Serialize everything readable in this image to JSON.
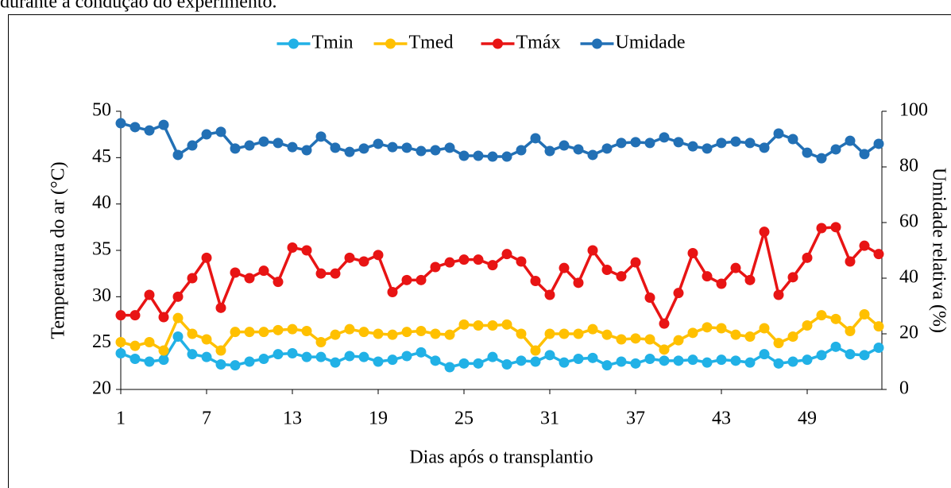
{
  "caption": "durante a condução do experimento.",
  "chart_data": {
    "type": "line",
    "x_label": "Dias após o transplantio",
    "y_label": "Temperatura do ar (°C)",
    "y2_label": "Umidade relativa (%)",
    "x": [
      1,
      2,
      3,
      4,
      5,
      6,
      7,
      8,
      9,
      10,
      11,
      12,
      13,
      14,
      15,
      16,
      17,
      18,
      19,
      20,
      21,
      22,
      23,
      24,
      25,
      26,
      27,
      28,
      29,
      30,
      31,
      32,
      33,
      34,
      35,
      36,
      37,
      38,
      39,
      40,
      41,
      42,
      43,
      44,
      45,
      46,
      47,
      48,
      49,
      50,
      51,
      52,
      53,
      54
    ],
    "xlim": [
      1,
      54
    ],
    "xticks": [
      1,
      7,
      13,
      19,
      25,
      31,
      37,
      43,
      49
    ],
    "ylim": [
      20,
      50
    ],
    "yticks": [
      20,
      25,
      30,
      35,
      40,
      45,
      50
    ],
    "y2lim": [
      0,
      100
    ],
    "y2ticks": [
      0,
      20,
      40,
      60,
      80,
      100
    ],
    "legend": "top",
    "series": [
      {
        "name": "Tmin",
        "color": "#21b1e6",
        "values": [
          23.9,
          23.3,
          23,
          23.2,
          25.7,
          23.8,
          23.5,
          22.7,
          22.6,
          23,
          23.3,
          23.8,
          23.9,
          23.5,
          23.5,
          22.9,
          23.6,
          23.5,
          23,
          23.2,
          23.6,
          24,
          23.1,
          22.4,
          22.8,
          22.8,
          23.5,
          22.7,
          23.1,
          23,
          23.7,
          22.9,
          23.3,
          23.4,
          22.6,
          23,
          22.8,
          23.3,
          23.1,
          23.1,
          23.2,
          22.9,
          23.2,
          23.1,
          22.9,
          23.8,
          22.8,
          23,
          23.2,
          23.7,
          24.6,
          23.8,
          23.7,
          24.5
        ]
      },
      {
        "name": "Tmed",
        "color": "#ffc000",
        "values": [
          25.1,
          24.7,
          25.1,
          24.2,
          27.7,
          26,
          25.4,
          24.2,
          26.2,
          26.2,
          26.2,
          26.4,
          26.5,
          26.3,
          25.1,
          25.9,
          26.5,
          26.2,
          26,
          25.9,
          26.2,
          26.3,
          26,
          25.9,
          27,
          26.9,
          26.9,
          27,
          26,
          24.2,
          26,
          26,
          26,
          26.5,
          25.9,
          25.4,
          25.5,
          25.4,
          24.3,
          25.3,
          26.1,
          26.7,
          26.6,
          25.9,
          25.7,
          26.6,
          25,
          25.7,
          26.9,
          28,
          27.6,
          26.3,
          28.1,
          26.8
        ]
      },
      {
        "name": "Tmáx",
        "color": "#e81414",
        "values": [
          28,
          28,
          30.2,
          27.8,
          30,
          32,
          34.2,
          28.8,
          32.6,
          32,
          32.8,
          31.6,
          35.3,
          35,
          32.5,
          32.5,
          34.2,
          33.8,
          34.5,
          30.5,
          31.8,
          31.8,
          33.2,
          33.7,
          34,
          34,
          33.4,
          34.6,
          33.8,
          31.7,
          30.2,
          33.1,
          31.5,
          35,
          32.9,
          32.2,
          33.7,
          29.9,
          27.1,
          30.4,
          34.7,
          32.2,
          31.4,
          33.1,
          31.8,
          37,
          30.2,
          32.1,
          34.2,
          37.4,
          37.5,
          33.8,
          35.5,
          34.6
        ]
      },
      {
        "name": "Umidade",
        "color": "#2270b5",
        "axis": "y2",
        "values": [
          95.7,
          94.3,
          93.1,
          95.1,
          84.3,
          87.7,
          91.7,
          92.6,
          86.6,
          87.7,
          89.1,
          88.6,
          87.1,
          86,
          90.9,
          86.9,
          85.4,
          86.6,
          88.3,
          87.1,
          86.9,
          85.7,
          86,
          86.9,
          84,
          84,
          83.7,
          83.7,
          86,
          90.3,
          85.7,
          87.7,
          86.3,
          84.3,
          86.6,
          88.6,
          88.9,
          88.6,
          90.6,
          88.9,
          87.4,
          86.6,
          88.6,
          89.1,
          88.6,
          86.9,
          92,
          90,
          85.1,
          83.1,
          86.3,
          89.4,
          84.6,
          88.3
        ]
      }
    ]
  }
}
